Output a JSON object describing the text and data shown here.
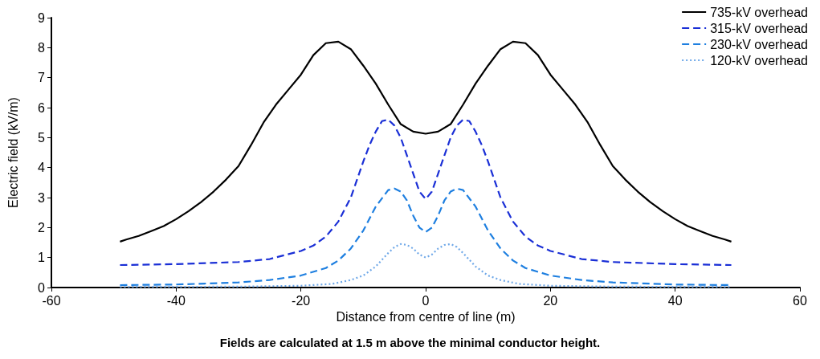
{
  "chart_data": {
    "type": "line",
    "xlabel": "Distance from centre of line (m)",
    "ylabel": "Electric field (kV/m)",
    "annotations": [
      "Fields are calculated at 1.5 m above the minimal conductor height."
    ],
    "xlim": [
      -60,
      60
    ],
    "xticks": [
      -60,
      -40,
      -20,
      0,
      20,
      40,
      60
    ],
    "ylim": [
      0,
      9
    ],
    "yticks": [
      0,
      1,
      2,
      3,
      4,
      5,
      6,
      7,
      8,
      9
    ],
    "grid": false,
    "legend": "top right",
    "marker": "none",
    "series": [
      {
        "name": "735-kV overhead",
        "color": "#000000",
        "line_style": "solid",
        "x": [
          -49,
          -48,
          -46,
          -44,
          -42,
          -40,
          -38,
          -36,
          -34,
          -32,
          -30,
          -28,
          -26,
          -24,
          -22,
          -20,
          -18,
          -16,
          -14,
          -12,
          -10,
          -8,
          -6,
          -4,
          -2,
          0,
          2,
          4,
          6,
          8,
          10,
          12,
          14,
          16,
          18,
          20,
          22,
          24,
          26,
          28,
          30,
          32,
          34,
          36,
          38,
          40,
          42,
          44,
          46,
          48,
          49
        ],
        "values": [
          1.53,
          1.6,
          1.72,
          1.88,
          2.05,
          2.28,
          2.55,
          2.85,
          3.2,
          3.6,
          4.05,
          4.75,
          5.5,
          6.1,
          6.6,
          7.1,
          7.75,
          8.15,
          8.2,
          7.95,
          7.4,
          6.8,
          6.1,
          5.45,
          5.2,
          5.13,
          5.2,
          5.45,
          6.1,
          6.8,
          7.4,
          7.95,
          8.2,
          8.15,
          7.75,
          7.1,
          6.6,
          6.1,
          5.5,
          4.75,
          4.05,
          3.6,
          3.2,
          2.85,
          2.55,
          2.28,
          2.05,
          1.88,
          1.72,
          1.6,
          1.53
        ]
      },
      {
        "name": "315-kV overhead",
        "color": "#1a2fd6",
        "line_style": "dashed",
        "x": [
          -49,
          -40,
          -30,
          -25,
          -20,
          -18,
          -16,
          -14,
          -12,
          -10,
          -9,
          -8,
          -7,
          -6,
          -5,
          -4,
          -3,
          -2,
          -1,
          0,
          1,
          2,
          3,
          4,
          5,
          6,
          7,
          8,
          9,
          10,
          12,
          14,
          16,
          18,
          20,
          25,
          30,
          40,
          49
        ],
        "values": [
          0.75,
          0.78,
          0.85,
          0.95,
          1.22,
          1.4,
          1.7,
          2.2,
          3.0,
          4.2,
          4.75,
          5.2,
          5.55,
          5.6,
          5.4,
          5.0,
          4.4,
          3.8,
          3.2,
          2.95,
          3.2,
          3.8,
          4.4,
          5.0,
          5.4,
          5.6,
          5.55,
          5.2,
          4.75,
          4.2,
          3.0,
          2.2,
          1.7,
          1.4,
          1.22,
          0.95,
          0.85,
          0.78,
          0.75
        ]
      },
      {
        "name": "230-kV overhead",
        "color": "#1e7fe0",
        "line_style": "dashed",
        "x": [
          -49,
          -40,
          -30,
          -25,
          -20,
          -16,
          -14,
          -12,
          -10,
          -8,
          -6,
          -5,
          -4,
          -3,
          -2,
          -1,
          0,
          1,
          2,
          3,
          4,
          5,
          6,
          8,
          10,
          12,
          14,
          16,
          20,
          25,
          30,
          40,
          49
        ],
        "values": [
          0.08,
          0.1,
          0.17,
          0.25,
          0.4,
          0.65,
          0.9,
          1.3,
          1.9,
          2.7,
          3.25,
          3.3,
          3.2,
          2.9,
          2.4,
          2.0,
          1.85,
          2.0,
          2.4,
          2.9,
          3.2,
          3.3,
          3.25,
          2.7,
          1.9,
          1.3,
          0.9,
          0.65,
          0.4,
          0.25,
          0.17,
          0.1,
          0.08
        ]
      },
      {
        "name": "120-kV overhead",
        "color": "#6fa8e8",
        "line_style": "dotted",
        "x": [
          -49,
          -30,
          -20,
          -15,
          -12,
          -10,
          -8,
          -6,
          -5,
          -4,
          -3,
          -2,
          -1,
          0,
          1,
          2,
          3,
          4,
          5,
          6,
          8,
          10,
          12,
          15,
          20,
          30,
          49
        ],
        "values": [
          0.02,
          0.03,
          0.06,
          0.12,
          0.25,
          0.4,
          0.7,
          1.15,
          1.35,
          1.45,
          1.42,
          1.3,
          1.1,
          1.0,
          1.1,
          1.3,
          1.42,
          1.45,
          1.35,
          1.15,
          0.7,
          0.4,
          0.25,
          0.12,
          0.06,
          0.03,
          0.02
        ]
      }
    ]
  }
}
